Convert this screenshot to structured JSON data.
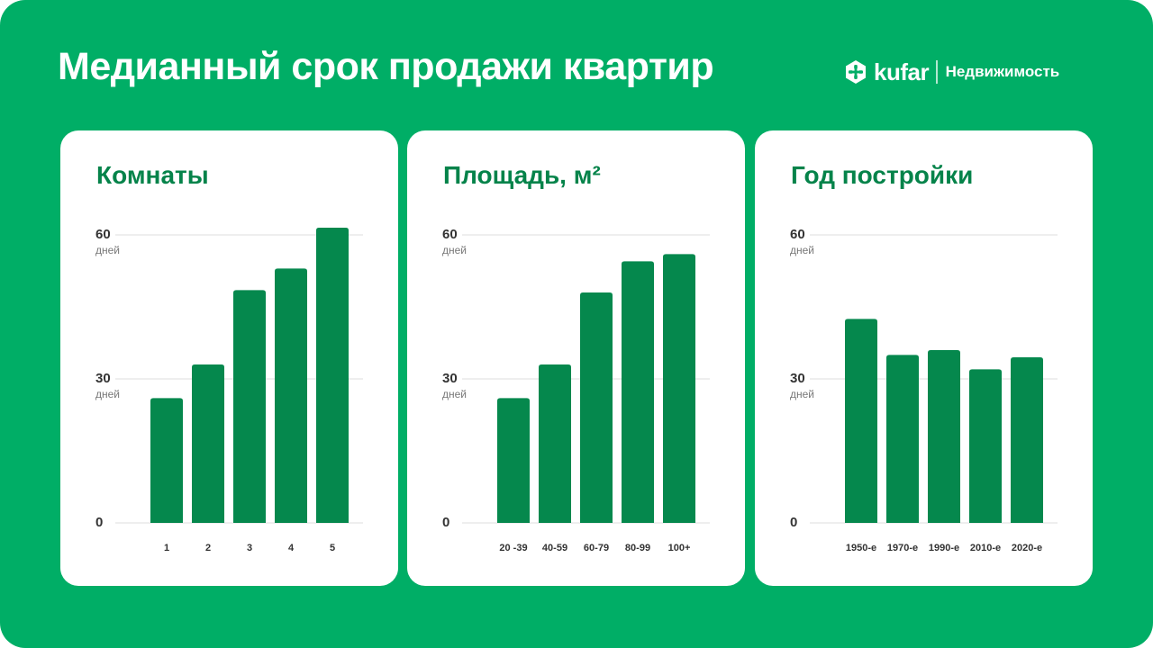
{
  "title": "Медианный срок продажи квартир",
  "brand": {
    "name": "kufar",
    "section": "Недвижимость"
  },
  "colors": {
    "background": "#00ae66",
    "bar": "#05884d",
    "title": "#05834a",
    "grid": "#dddddd"
  },
  "chart_data": [
    {
      "type": "bar",
      "title": "Комнаты",
      "categories": [
        "1",
        "2",
        "3",
        "4",
        "5"
      ],
      "values": [
        26,
        33,
        48.5,
        53,
        61.5
      ],
      "ylim": [
        0,
        60
      ],
      "yticks": [
        {
          "value": 60,
          "label": "60",
          "unit": "дней"
        },
        {
          "value": 30,
          "label": "30",
          "unit": "дней"
        },
        {
          "value": 0,
          "label": "0",
          "unit": ""
        }
      ],
      "grid": true
    },
    {
      "type": "bar",
      "title": "Площадь, м²",
      "categories": [
        "20 -39",
        "40-59",
        "60-79",
        "80-99",
        "100+"
      ],
      "values": [
        26,
        33,
        48,
        54.5,
        56
      ],
      "ylim": [
        0,
        60
      ],
      "yticks": [
        {
          "value": 60,
          "label": "60",
          "unit": "дней"
        },
        {
          "value": 30,
          "label": "30",
          "unit": "дней"
        },
        {
          "value": 0,
          "label": "0",
          "unit": ""
        }
      ],
      "grid": true
    },
    {
      "type": "bar",
      "title": "Год постройки",
      "categories": [
        "1950-е",
        "1970-е",
        "1990-е",
        "2010-е",
        "2020-е"
      ],
      "values": [
        42.5,
        35,
        36,
        32,
        34.5
      ],
      "ylim": [
        0,
        60
      ],
      "yticks": [
        {
          "value": 60,
          "label": "60",
          "unit": "дней"
        },
        {
          "value": 30,
          "label": "30",
          "unit": "дней"
        },
        {
          "value": 0,
          "label": "0",
          "unit": ""
        }
      ],
      "grid": true
    }
  ]
}
